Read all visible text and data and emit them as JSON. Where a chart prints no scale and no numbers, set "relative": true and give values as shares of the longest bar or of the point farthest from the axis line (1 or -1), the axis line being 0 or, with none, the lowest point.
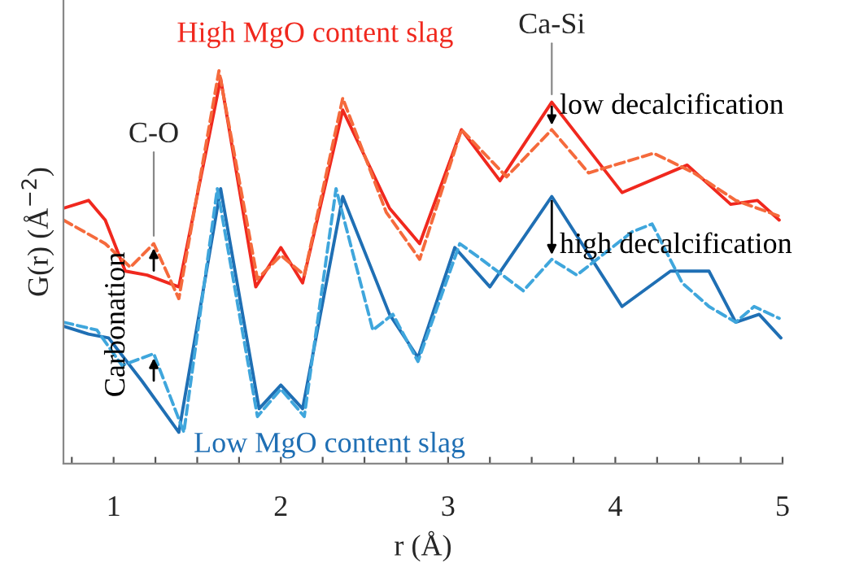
{
  "chart_data": {
    "type": "line",
    "relative": true,
    "xlabel": "r (Å)",
    "ylabel": "G(r) (Å$^{−2}$)",
    "xlim": [
      0.7,
      5
    ],
    "xticks": [
      {
        "value": 0.75,
        "label": null
      },
      1,
      {
        "value": 1.25,
        "label": null
      },
      {
        "value": 1.5,
        "label": null
      },
      {
        "value": 1.75,
        "label": null
      },
      2,
      {
        "value": 2.25,
        "label": null
      },
      {
        "value": 2.5,
        "label": null
      },
      {
        "value": 2.75,
        "label": null
      },
      3,
      {
        "value": 3.25,
        "label": null
      },
      {
        "value": 3.5,
        "label": null
      },
      {
        "value": 3.75,
        "label": null
      },
      4,
      {
        "value": 4.25,
        "label": null
      },
      {
        "value": 4.5,
        "label": null
      },
      {
        "value": 4.75,
        "label": null
      },
      5
    ],
    "grid": false,
    "legend": false,
    "series": [
      {
        "color": "#f0281e",
        "line_style": "solid",
        "x": [
          0.7,
          0.85,
          0.95,
          1.07,
          1.2,
          1.39,
          1.64,
          1.85,
          2.0,
          2.13,
          2.37,
          2.65,
          2.83,
          3.08,
          3.31,
          3.62,
          4.04,
          4.43,
          4.69,
          4.85,
          4.98
        ],
        "values": [
          0.65,
          0.67,
          0.62,
          0.49,
          0.48,
          0.45,
          0.98,
          0.45,
          0.55,
          0.46,
          0.9,
          0.65,
          0.56,
          0.85,
          0.72,
          0.92,
          0.69,
          0.76,
          0.66,
          0.67,
          0.62
        ]
      },
      {
        "color": "#f56a3c",
        "line_style": "dashed",
        "x": [
          0.7,
          0.95,
          1.1,
          1.24,
          1.39,
          1.63,
          1.86,
          2.0,
          2.14,
          2.37,
          2.63,
          2.83,
          3.08,
          3.35,
          3.62,
          3.84,
          4.23,
          4.47,
          4.72,
          4.98
        ],
        "values": [
          0.62,
          0.56,
          0.5,
          0.56,
          0.42,
          1.0,
          0.47,
          0.53,
          0.48,
          0.93,
          0.64,
          0.52,
          0.85,
          0.73,
          0.85,
          0.74,
          0.79,
          0.74,
          0.67,
          0.63
        ]
      },
      {
        "color": "#1f6fb4",
        "line_style": "solid",
        "x": [
          0.7,
          0.85,
          0.97,
          1.17,
          1.39,
          1.64,
          1.87,
          2.0,
          2.13,
          2.37,
          2.65,
          2.82,
          3.04,
          3.25,
          3.62,
          4.04,
          4.33,
          4.56,
          4.72,
          4.86,
          4.99
        ],
        "values": [
          0.35,
          0.33,
          0.32,
          0.21,
          0.08,
          0.7,
          0.14,
          0.2,
          0.14,
          0.68,
          0.38,
          0.27,
          0.55,
          0.45,
          0.68,
          0.4,
          0.49,
          0.49,
          0.36,
          0.38,
          0.32
        ]
      },
      {
        "color": "#3fa6dc",
        "line_style": "dashed",
        "x": [
          0.7,
          0.9,
          1.05,
          1.24,
          1.42,
          1.62,
          1.86,
          2.0,
          2.14,
          2.33,
          2.55,
          2.67,
          2.82,
          3.07,
          3.2,
          3.45,
          3.62,
          3.77,
          4.1,
          4.22,
          4.4,
          4.56,
          4.72,
          4.83,
          4.98
        ],
        "values": [
          0.36,
          0.34,
          0.25,
          0.28,
          0.08,
          0.7,
          0.12,
          0.19,
          0.12,
          0.7,
          0.34,
          0.38,
          0.26,
          0.56,
          0.52,
          0.44,
          0.52,
          0.48,
          0.59,
          0.61,
          0.46,
          0.4,
          0.36,
          0.4,
          0.37
        ]
      }
    ],
    "annotations": [
      "High MgO content slag",
      "Low MgO content slag",
      {
        "text": "C-O",
        "x": 1.24,
        "y": 0.56
      },
      {
        "text": "Ca-Si",
        "x": 3.62,
        "y": 0.92
      },
      "low decalcification",
      "high decalcification",
      "Carbonation"
    ]
  }
}
